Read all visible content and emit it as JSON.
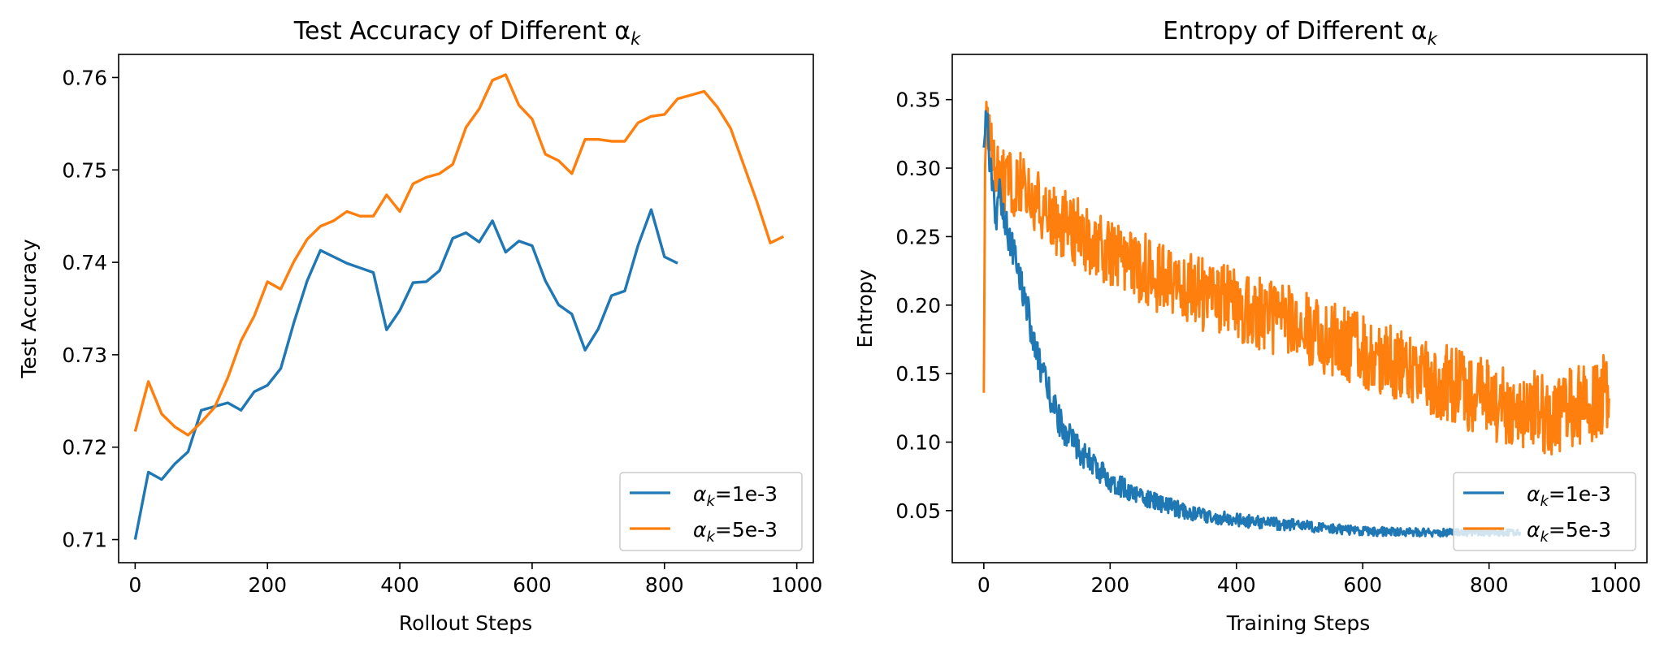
{
  "colors": {
    "series1": "#1f77b4",
    "series2": "#ff7f0e",
    "axis": "#000000",
    "legend_border": "#cccccc"
  },
  "chart_data": [
    {
      "type": "line",
      "title": "Test Accuracy of Different α",
      "title_subscript": "k",
      "xlabel": "Rollout Steps",
      "ylabel": "Test Accuracy",
      "xlim": [
        -25,
        1025
      ],
      "ylim": [
        0.7075,
        0.7625
      ],
      "xticks": [
        0,
        200,
        400,
        600,
        800,
        1000
      ],
      "yticks": [
        0.71,
        0.72,
        0.73,
        0.74,
        0.75,
        0.76
      ],
      "ytick_labels": [
        "0.71",
        "0.72",
        "0.73",
        "0.74",
        "0.75",
        "0.76"
      ],
      "xtick_labels": [
        "0",
        "200",
        "400",
        "600",
        "800",
        "1000"
      ],
      "legend_position": "lower-right",
      "grid": false,
      "series": [
        {
          "name": "α",
          "name_subscript": "k",
          "name_suffix": "=1e-3",
          "color": "#1f77b4",
          "x": [
            0,
            20,
            40,
            60,
            80,
            100,
            120,
            140,
            160,
            180,
            200,
            220,
            240,
            260,
            280,
            300,
            320,
            340,
            360,
            380,
            400,
            420,
            440,
            460,
            480,
            500,
            520,
            540,
            560,
            580,
            600,
            620,
            640,
            660,
            680,
            700,
            720,
            740,
            760,
            780,
            800,
            820
          ],
          "y": [
            0.71,
            0.7173,
            0.7165,
            0.7182,
            0.7195,
            0.724,
            0.7244,
            0.7248,
            0.724,
            0.726,
            0.7267,
            0.7285,
            0.7335,
            0.738,
            0.7413,
            0.7406,
            0.7399,
            0.7394,
            0.7389,
            0.7327,
            0.7348,
            0.7378,
            0.7379,
            0.7391,
            0.7426,
            0.7432,
            0.7422,
            0.7445,
            0.7411,
            0.7423,
            0.7418,
            0.738,
            0.7354,
            0.7344,
            0.7305,
            0.7328,
            0.7364,
            0.7369,
            0.7418,
            0.7457,
            0.7406,
            0.7399
          ]
        },
        {
          "name": "α",
          "name_subscript": "k",
          "name_suffix": "=5e-3",
          "color": "#ff7f0e",
          "x": [
            0,
            20,
            40,
            60,
            80,
            100,
            120,
            140,
            160,
            180,
            200,
            220,
            240,
            260,
            280,
            300,
            320,
            340,
            360,
            380,
            400,
            420,
            440,
            460,
            480,
            500,
            520,
            540,
            560,
            580,
            600,
            620,
            640,
            660,
            680,
            700,
            720,
            740,
            760,
            780,
            800,
            820,
            840,
            860,
            880,
            900,
            920,
            940,
            960,
            980
          ],
          "y": [
            0.7217,
            0.7271,
            0.7236,
            0.7222,
            0.7213,
            0.7227,
            0.7243,
            0.7275,
            0.7315,
            0.7342,
            0.7379,
            0.7371,
            0.7401,
            0.7425,
            0.7439,
            0.7445,
            0.7455,
            0.745,
            0.745,
            0.7473,
            0.7455,
            0.7485,
            0.7492,
            0.7496,
            0.7506,
            0.7546,
            0.7566,
            0.7597,
            0.7603,
            0.757,
            0.7555,
            0.7517,
            0.751,
            0.7496,
            0.7533,
            0.7533,
            0.7531,
            0.7531,
            0.7551,
            0.7558,
            0.756,
            0.7577,
            0.7581,
            0.7585,
            0.7568,
            0.7545,
            0.7505,
            0.7465,
            0.7421,
            0.7428
          ]
        }
      ]
    },
    {
      "type": "line",
      "title": "Entropy of Different α",
      "title_subscript": "k",
      "xlabel": "Training Steps",
      "ylabel": "Entropy",
      "xlim": [
        -50,
        1050
      ],
      "ylim": [
        0.012,
        0.383
      ],
      "xticks": [
        0,
        200,
        400,
        600,
        800,
        1000
      ],
      "yticks": [
        0.05,
        0.1,
        0.15,
        0.2,
        0.25,
        0.3,
        0.35
      ],
      "ytick_labels": [
        "0.05",
        "0.10",
        "0.15",
        "0.20",
        "0.25",
        "0.30",
        "0.35"
      ],
      "xtick_labels": [
        "0",
        "200",
        "400",
        "600",
        "800",
        "1000"
      ],
      "legend_position": "lower-right",
      "grid": false,
      "noisy_samples_per_unit": 1,
      "series": [
        {
          "name": "α",
          "name_subscript": "k",
          "name_suffix": "=1e-3",
          "color": "#1f77b4",
          "x_range": [
            0,
            850
          ],
          "trend_x": [
            0,
            5,
            10,
            15,
            20,
            25,
            30,
            40,
            50,
            60,
            70,
            80,
            90,
            100,
            120,
            140,
            160,
            180,
            200,
            250,
            300,
            350,
            400,
            450,
            500,
            550,
            600,
            700,
            850
          ],
          "trend_y": [
            0.315,
            0.34,
            0.3,
            0.275,
            0.26,
            0.285,
            0.27,
            0.25,
            0.235,
            0.215,
            0.195,
            0.17,
            0.155,
            0.14,
            0.115,
            0.1,
            0.09,
            0.08,
            0.072,
            0.06,
            0.052,
            0.046,
            0.043,
            0.041,
            0.039,
            0.037,
            0.035,
            0.034,
            0.034
          ],
          "noise_amplitude": [
            0.012,
            0.004
          ]
        },
        {
          "name": "α",
          "name_subscript": "k",
          "name_suffix": "=5e-3",
          "color": "#ff7f0e",
          "x_range": [
            0,
            990
          ],
          "trend_x": [
            0,
            2,
            4,
            8,
            15,
            30,
            50,
            80,
            120,
            200,
            300,
            400,
            500,
            600,
            700,
            800,
            900,
            990
          ],
          "trend_y": [
            0.136,
            0.3,
            0.345,
            0.32,
            0.3,
            0.29,
            0.29,
            0.275,
            0.26,
            0.24,
            0.215,
            0.2,
            0.185,
            0.165,
            0.15,
            0.13,
            0.12,
            0.135
          ],
          "noise_amplitude": [
            0.025,
            0.03
          ]
        }
      ]
    }
  ]
}
